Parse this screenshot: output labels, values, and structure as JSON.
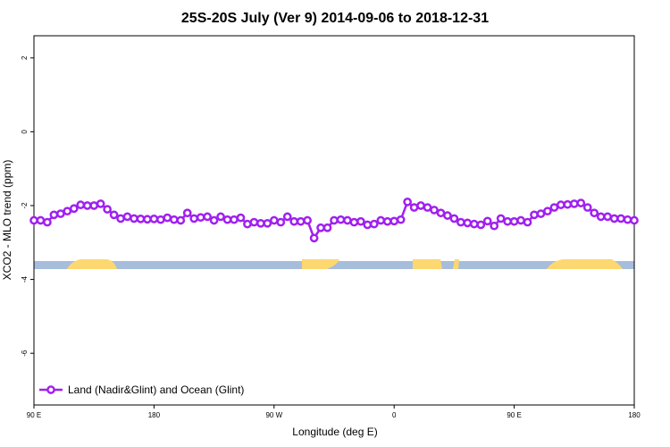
{
  "chart_data": {
    "type": "line",
    "title": "25S-20S July (Ver 9)   2014-09-06 to 2018-12-31",
    "x_label": "Longitude (deg E)",
    "y_label": "XCO2 - MLO trend (ppm)",
    "xlim": [
      90,
      540
    ],
    "ylim": [
      -7.4,
      2.6
    ],
    "xticks": [
      {
        "value": 90,
        "label": "90 E"
      },
      180,
      {
        "value": 270,
        "label": "90 W"
      },
      {
        "value": 360,
        "label": "0"
      },
      {
        "value": 450,
        "label": "90 E"
      },
      {
        "value": 540,
        "label": "180"
      }
    ],
    "yticks": [
      2,
      0,
      -2,
      -4,
      -6
    ],
    "legend_position": "bottom-left",
    "x": [
      90,
      95,
      100,
      105,
      110,
      115,
      120,
      125,
      130,
      135,
      140,
      145,
      150,
      155,
      160,
      165,
      170,
      175,
      180,
      185,
      190,
      195,
      200,
      205,
      210,
      215,
      220,
      225,
      230,
      235,
      240,
      245,
      250,
      255,
      260,
      265,
      270,
      275,
      280,
      285,
      290,
      295,
      300,
      305,
      310,
      315,
      320,
      325,
      330,
      335,
      340,
      345,
      350,
      355,
      360,
      365,
      370,
      375,
      380,
      385,
      390,
      395,
      400,
      405,
      410,
      415,
      420,
      425,
      430,
      435,
      440,
      445,
      450,
      455,
      460,
      465,
      470,
      475,
      480,
      485,
      490,
      495,
      500,
      505,
      510,
      515,
      520,
      525,
      530,
      535,
      540
    ],
    "series": [
      {
        "name": "Land (Nadir&Glint) and Ocean (Glint)",
        "color": "#a020f0",
        "values": [
          -2.4,
          -2.4,
          -2.45,
          -2.25,
          -2.22,
          -2.15,
          -2.08,
          -1.98,
          -2.0,
          -2.0,
          -1.95,
          -2.1,
          -2.25,
          -2.35,
          -2.3,
          -2.35,
          -2.36,
          -2.37,
          -2.36,
          -2.38,
          -2.33,
          -2.38,
          -2.4,
          -2.2,
          -2.35,
          -2.32,
          -2.3,
          -2.4,
          -2.3,
          -2.38,
          -2.38,
          -2.33,
          -2.5,
          -2.45,
          -2.48,
          -2.48,
          -2.4,
          -2.45,
          -2.3,
          -2.43,
          -2.43,
          -2.4,
          -2.88,
          -2.6,
          -2.6,
          -2.4,
          -2.38,
          -2.4,
          -2.45,
          -2.43,
          -2.52,
          -2.5,
          -2.4,
          -2.43,
          -2.42,
          -2.38,
          -1.9,
          -2.05,
          -2.0,
          -2.05,
          -2.12,
          -2.2,
          -2.27,
          -2.35,
          -2.45,
          -2.47,
          -2.5,
          -2.52,
          -2.42,
          -2.55,
          -2.35,
          -2.43,
          -2.43,
          -2.4,
          -2.45,
          -2.25,
          -2.22,
          -2.15,
          -2.05,
          -1.98,
          -1.97,
          -1.95,
          -1.93,
          -2.05,
          -2.2,
          -2.3,
          -2.3,
          -2.35,
          -2.35,
          -2.38,
          -2.4
        ]
      }
    ]
  }
}
